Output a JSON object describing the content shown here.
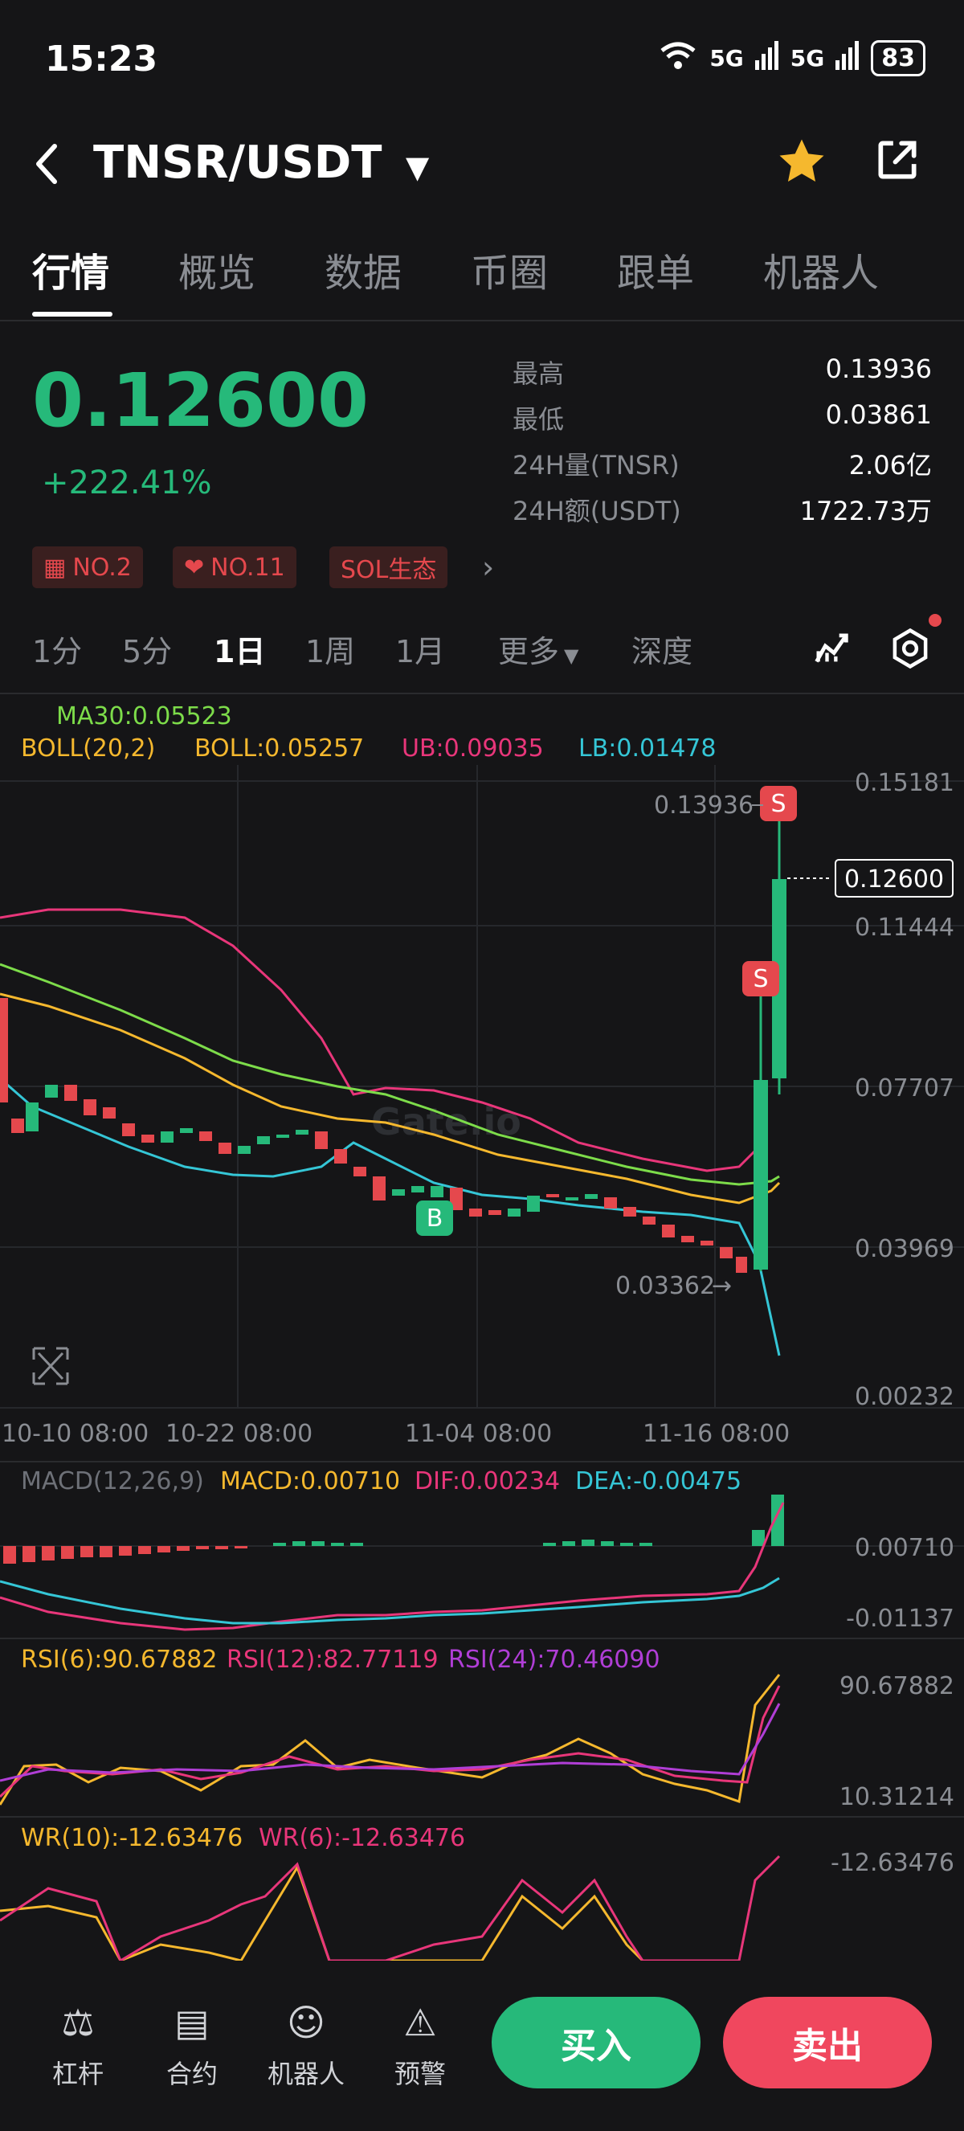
{
  "status": {
    "time": "15:23",
    "net1": "5G",
    "net2": "5G",
    "battery": "83"
  },
  "header": {
    "pair": "TNSR/USDT"
  },
  "tabs": [
    "行情",
    "概览",
    "数据",
    "币圈",
    "跟单",
    "机器人"
  ],
  "ticker": {
    "price": "0.12600",
    "change": "+222.41%",
    "stats": [
      {
        "label": "最高",
        "value": "0.13936"
      },
      {
        "label": "最低",
        "value": "0.03861"
      },
      {
        "label": "24H量(TNSR)",
        "value": "2.06亿"
      },
      {
        "label": "24H额(USDT)",
        "value": "1722.73万"
      }
    ],
    "tags": [
      "NO.2",
      "NO.11",
      "SOL生态"
    ]
  },
  "intervals": [
    "1分",
    "5分",
    "1日",
    "1周",
    "1月",
    "更多",
    "深度"
  ],
  "active_interval": "1日",
  "main_chart": {
    "ma_label": "MA30:0.05523",
    "boll_label": "BOLL(20,2)",
    "boll_value": "BOLL:0.05257",
    "ub": "UB:0.09035",
    "lb": "LB:0.01478",
    "y_ticks": [
      "0.15181",
      "0.11444",
      "0.07707",
      "0.03969",
      "0.00232"
    ],
    "x_ticks": [
      "10-10 08:00",
      "10-22 08:00",
      "11-04 08:00",
      "11-16 08:00"
    ],
    "current_price": "0.12600",
    "high_marker": "0.13936",
    "low_marker": "0.03362",
    "watermark": "Gate.io",
    "signal_s": "S",
    "signal_b": "B"
  },
  "macd": {
    "title": "MACD(12,26,9)",
    "macd": "MACD:0.00710",
    "dif": "DIF:0.00234",
    "dea": "DEA:-0.00475",
    "y_ticks": [
      "0.00710",
      "-0.01137"
    ]
  },
  "rsi": {
    "r6": "RSI(6):90.67882",
    "r12": "RSI(12):82.77119",
    "r24": "RSI(24):70.46090",
    "y_ticks": [
      "90.67882",
      "10.31214"
    ]
  },
  "wr": {
    "w10": "WR(10):-12.63476",
    "w6": "WR(6):-12.63476",
    "y_tick": "-12.63476"
  },
  "bottom": {
    "items": [
      "杠杆",
      "合约",
      "机器人",
      "预警"
    ],
    "buy": "买入",
    "sell": "卖出"
  },
  "colors": {
    "up": "#26b97a",
    "down": "#e5484d",
    "bg": "#151517"
  }
}
